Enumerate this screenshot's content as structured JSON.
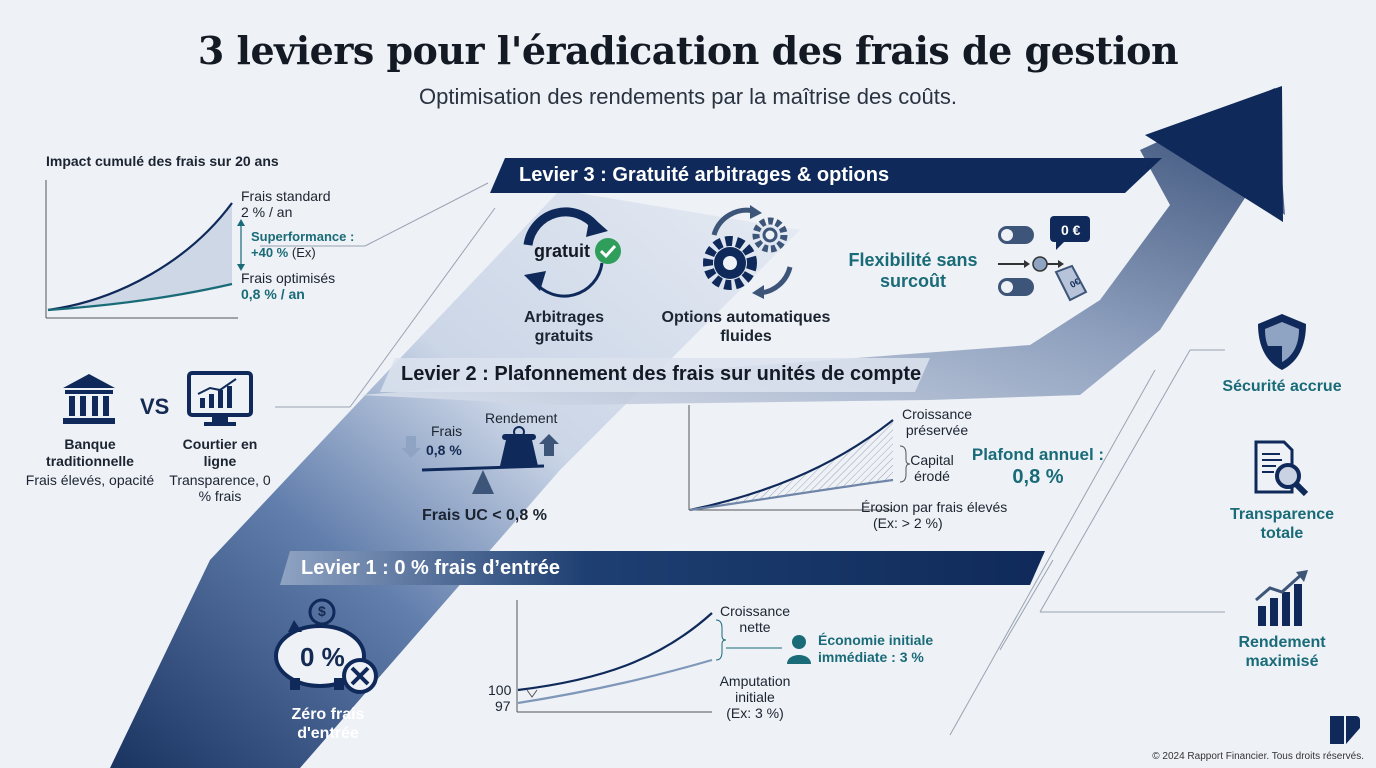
{
  "title": "3 leviers pour l'éradication des frais de gestion",
  "subtitle": "Optimisation des rendements par la maîtrise des coûts.",
  "impact_chart": {
    "heading": "Impact cumulé des frais sur 20 ans",
    "standard_label": "Frais standard",
    "standard_value": "2 % / an",
    "superformance_label": "Superformance :",
    "superformance_value": "+40 %",
    "superformance_note": "(Ex)",
    "optimised_label": "Frais optimisés",
    "optimised_value": "0,8 % / an"
  },
  "comparison": {
    "vs": "VS",
    "bank_name": "Banque traditionnelle",
    "bank_desc": "Frais élevés, opacité",
    "broker_name": "Courtier en ligne",
    "broker_desc": "Transparence, 0 % frais"
  },
  "lever3": {
    "title": "Levier 3 : Gratuité arbitrages & options",
    "badge_text": "gratuit",
    "item1": "Arbitrages gratuits",
    "item2": "Options automatiques fluides",
    "flex": "Flexibilité sans surcoût",
    "price_tag": "0 €",
    "euro_tag": "0€"
  },
  "lever2": {
    "title": "Levier 2 : Plafonnement des frais sur unités de compte",
    "frais_label": "Frais",
    "frais_value": "0,8 %",
    "rendement_label": "Rendement",
    "cap_label": "Frais UC < 0,8 %",
    "growth_label": "Croissance préservée",
    "capital_label": "Capital érodé",
    "erosion_label": "Érosion par frais élevés",
    "erosion_note": "(Ex: > 2 %)",
    "plafond_label": "Plafond annuel :",
    "plafond_value": "0,8 %"
  },
  "lever1": {
    "title": "Levier 1 : 0 % frais d’entrée",
    "piggy_text": "0 %",
    "coin_symbol": "$",
    "zero_label": "Zéro frais d'entrée",
    "growth_label": "Croissance nette",
    "amputation_label": "Amputation initiale",
    "amputation_note": "(Ex: 3 %)",
    "economy_label": "Économie initiale immédiate : 3 %",
    "tick_100": "100",
    "tick_97": "97"
  },
  "benefits": {
    "security": "Sécurité accrue",
    "transparency": "Transparence totale",
    "return": "Rendement maximisé"
  },
  "copyright": "© 2024 Rapport Financier. Tous droits réservés.",
  "colors": {
    "navy": "#0f2a5a",
    "teal": "#1a6b78",
    "slate": "#3d5578",
    "light_band": "#dce3ef"
  }
}
